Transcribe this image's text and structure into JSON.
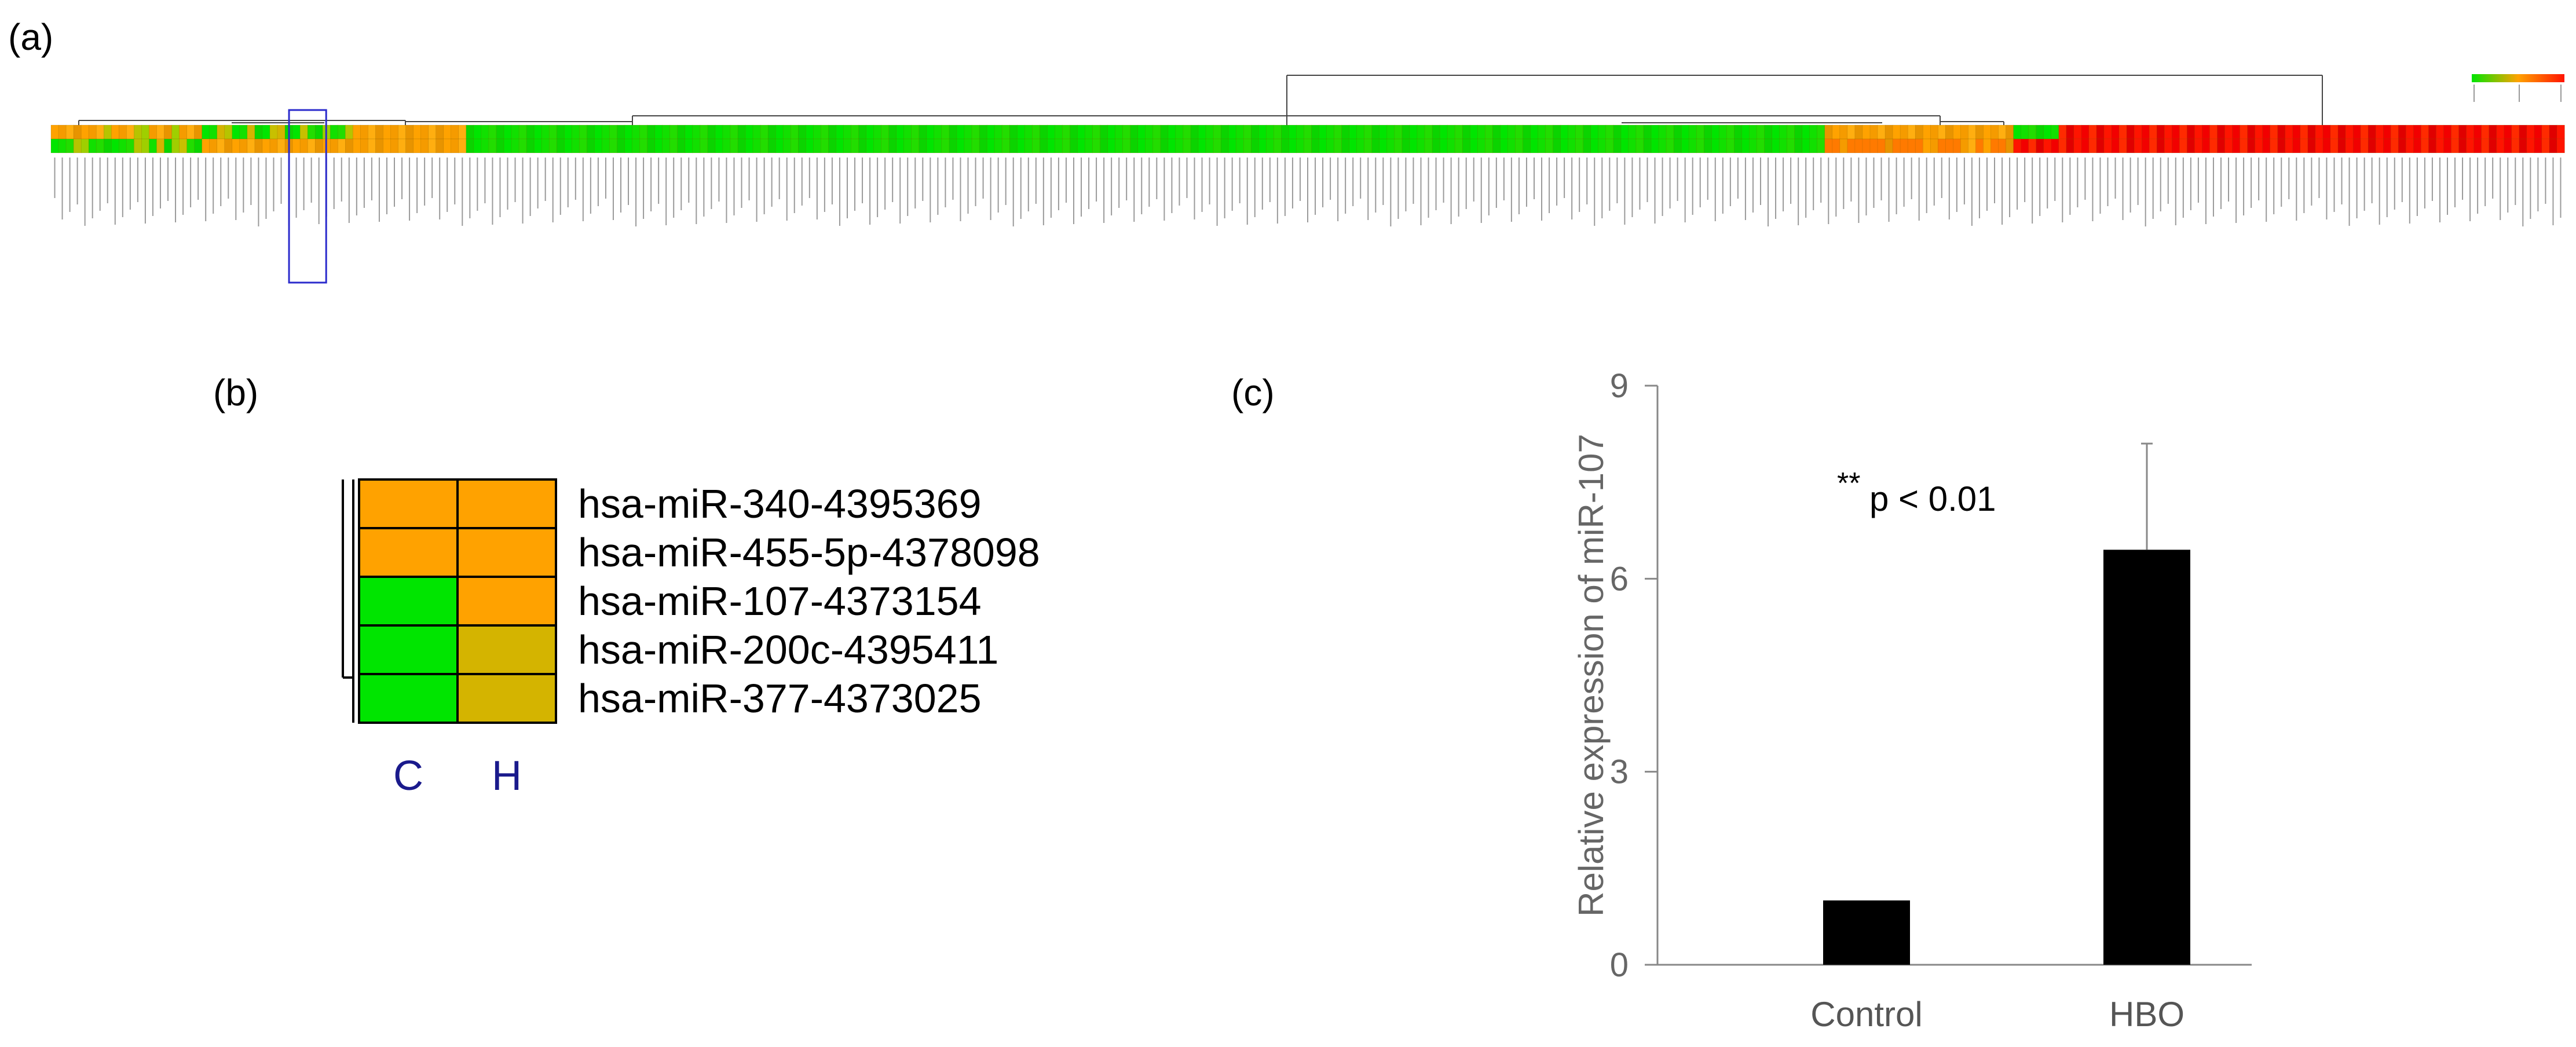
{
  "panels": {
    "a": {
      "label": "(a)"
    },
    "b": {
      "label": "(b)"
    },
    "c": {
      "label": "(c)"
    }
  },
  "colors": {
    "low": "#00e500",
    "mid": "#ffa200",
    "high": "#ff1400",
    "mustard": "#d4b400",
    "highlight_box": "#2b2bcc",
    "axis": "#888888",
    "bar": "#000000",
    "group_label": "#1a1a8c"
  },
  "chart_data": [
    {
      "id": "a",
      "type": "heatmap",
      "rows": 2,
      "columns": 333,
      "description_note": "",
      "highlighted_columns": [
        32,
        35
      ],
      "color_scale": [
        "#00e500",
        "#ffa200",
        "#ff1400"
      ]
    },
    {
      "id": "b",
      "type": "heatmap",
      "columns": [
        "C",
        "H"
      ],
      "rows": [
        "hsa-miR-340-4395369",
        "hsa-miR-455-5p-4378098",
        "hsa-miR-107-4373154",
        "hsa-miR-200c-4395411",
        "hsa-miR-377-4373025"
      ],
      "cell_colors": [
        [
          "#ffa200",
          "#ffa200"
        ],
        [
          "#ffa200",
          "#ffa200"
        ],
        [
          "#00e500",
          "#ffa200"
        ],
        [
          "#00e500",
          "#d4b400"
        ],
        [
          "#00e500",
          "#d4b400"
        ]
      ]
    },
    {
      "id": "c",
      "type": "bar",
      "categories": [
        "Control",
        "HBO"
      ],
      "values": [
        1.0,
        6.45
      ],
      "error": [
        0.0,
        1.65
      ],
      "ylabel": "Relative expression of miR-107",
      "xlabel": "",
      "ylim": [
        0,
        9
      ],
      "yticks": [
        0,
        3,
        6,
        9
      ],
      "annotation": {
        "stars": "**",
        "text": "p < 0.01"
      },
      "grid": false
    }
  ]
}
